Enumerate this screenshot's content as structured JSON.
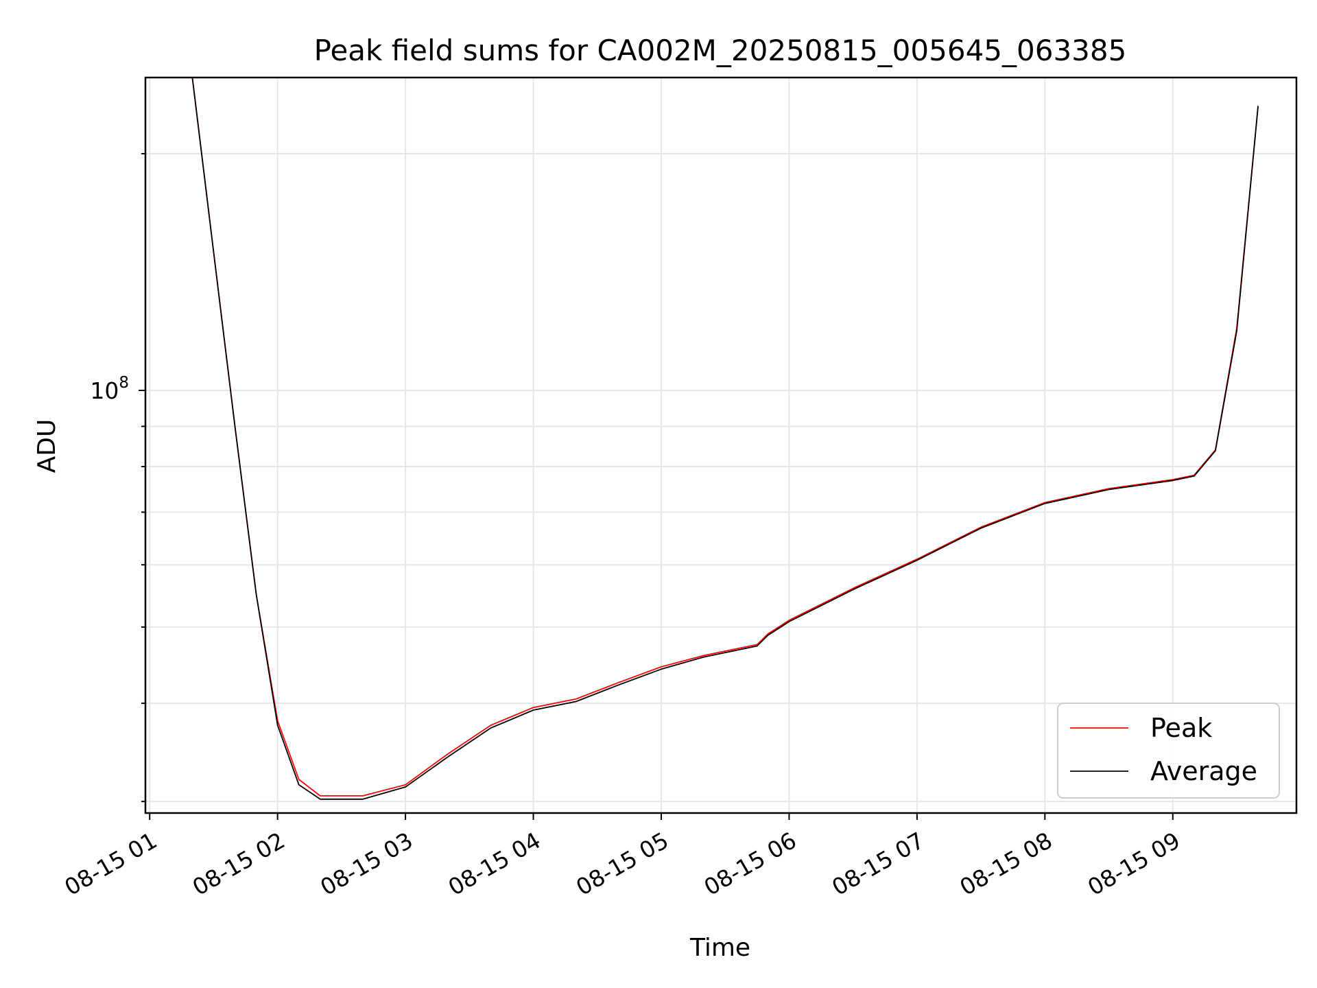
{
  "chart_data": {
    "type": "line",
    "title": "Peak field sums for CA002M_20250815_005645_063385",
    "xlabel": "Time",
    "ylabel": "ADU",
    "yscale": "log",
    "xlim": [
      "2025-08-15 00:58",
      "2025-08-15 09:58"
    ],
    "ylim": [
      29000000,
      250000000
    ],
    "x_ticks": [
      "08-15 01",
      "08-15 02",
      "08-15 03",
      "08-15 04",
      "08-15 05",
      "08-15 06",
      "08-15 07",
      "08-15 08",
      "08-15 09"
    ],
    "y_tick_labels": [
      {
        "value": 100000000,
        "base": "10",
        "exponent": "8"
      }
    ],
    "grid": true,
    "legend": "lower right",
    "series": [
      {
        "name": "Peak",
        "color": "#ff0000",
        "x": [
          "2025-08-15 01:20",
          "2025-08-15 01:30",
          "2025-08-15 01:40",
          "2025-08-15 01:50",
          "2025-08-15 02:00",
          "2025-08-15 02:10",
          "2025-08-15 02:20",
          "2025-08-15 02:40",
          "2025-08-15 03:00",
          "2025-08-15 03:20",
          "2025-08-15 03:40",
          "2025-08-15 04:00",
          "2025-08-15 04:20",
          "2025-08-15 04:40",
          "2025-08-15 05:00",
          "2025-08-15 05:20",
          "2025-08-15 05:45",
          "2025-08-15 05:50",
          "2025-08-15 06:00",
          "2025-08-15 06:30",
          "2025-08-15 07:00",
          "2025-08-15 07:30",
          "2025-08-15 08:00",
          "2025-08-15 08:30",
          "2025-08-15 09:00",
          "2025-08-15 09:10",
          "2025-08-15 09:20",
          "2025-08-15 09:30",
          "2025-08-15 09:40"
        ],
        "y": [
          250000000,
          150000000,
          90000000,
          55000000,
          38000000,
          32000000,
          30500000,
          30500000,
          31500000,
          34500000,
          37500000,
          39500000,
          40500000,
          42500000,
          44500000,
          46000000,
          47500000,
          49000000,
          51000000,
          56000000,
          61000000,
          67000000,
          72000000,
          75000000,
          77000000,
          78000000,
          84000000,
          120000000,
          230000000
        ]
      },
      {
        "name": "Average",
        "color": "#000000",
        "x": [
          "2025-08-15 01:20",
          "2025-08-15 01:30",
          "2025-08-15 01:40",
          "2025-08-15 01:50",
          "2025-08-15 02:00",
          "2025-08-15 02:10",
          "2025-08-15 02:20",
          "2025-08-15 02:40",
          "2025-08-15 03:00",
          "2025-08-15 03:20",
          "2025-08-15 03:40",
          "2025-08-15 04:00",
          "2025-08-15 04:20",
          "2025-08-15 04:40",
          "2025-08-15 05:00",
          "2025-08-15 05:20",
          "2025-08-15 05:45",
          "2025-08-15 05:50",
          "2025-08-15 06:00",
          "2025-08-15 06:30",
          "2025-08-15 07:00",
          "2025-08-15 07:30",
          "2025-08-15 08:00",
          "2025-08-15 08:30",
          "2025-08-15 09:00",
          "2025-08-15 09:10",
          "2025-08-15 09:20",
          "2025-08-15 09:30",
          "2025-08-15 09:40"
        ],
        "y": [
          250000000,
          150000000,
          90000000,
          55000000,
          37500000,
          31500000,
          30200000,
          30200000,
          31300000,
          34200000,
          37200000,
          39200000,
          40200000,
          42200000,
          44200000,
          45800000,
          47300000,
          48800000,
          50800000,
          55800000,
          60800000,
          66800000,
          71800000,
          74800000,
          76800000,
          77800000,
          83800000,
          119000000,
          230000000
        ]
      }
    ]
  }
}
